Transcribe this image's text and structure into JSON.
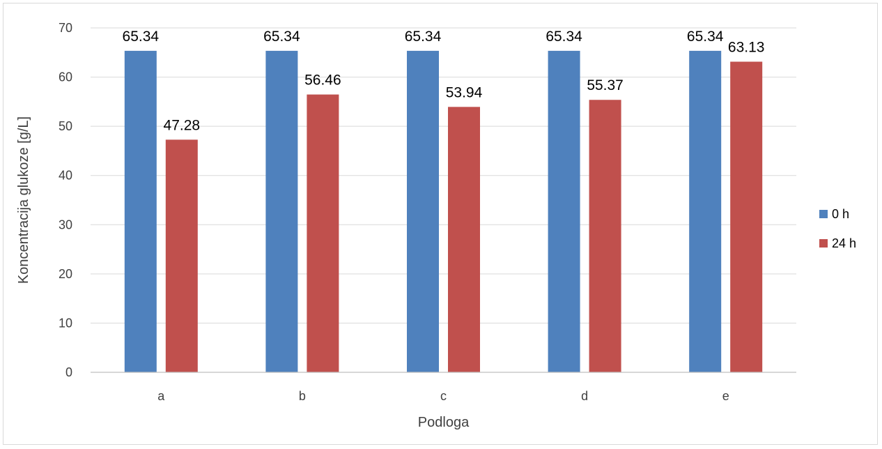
{
  "chart_data": {
    "type": "bar",
    "categories": [
      "a",
      "b",
      "c",
      "d",
      "e"
    ],
    "series": [
      {
        "name": "0 h",
        "values": [
          65.34,
          65.34,
          65.34,
          65.34,
          65.34
        ],
        "color": "#4f81bd"
      },
      {
        "name": "24 h",
        "values": [
          47.28,
          56.46,
          53.94,
          55.37,
          63.13
        ],
        "color": "#c0504d"
      }
    ],
    "data_labels": {
      "0 h": [
        "65.34",
        "65.34",
        "65.34",
        "65.34",
        "65.34"
      ],
      "24 h": [
        "47.28",
        "56.46",
        "53.94",
        "55.37",
        "63.13"
      ]
    },
    "title": "",
    "xlabel": "Podloga",
    "ylabel": "Koncentracija glukoze [g/L]",
    "ylim": [
      0,
      70
    ],
    "yticks": [
      "0",
      "10",
      "20",
      "30",
      "40",
      "50",
      "60",
      "70"
    ],
    "grid": true,
    "legend_position": "right"
  }
}
